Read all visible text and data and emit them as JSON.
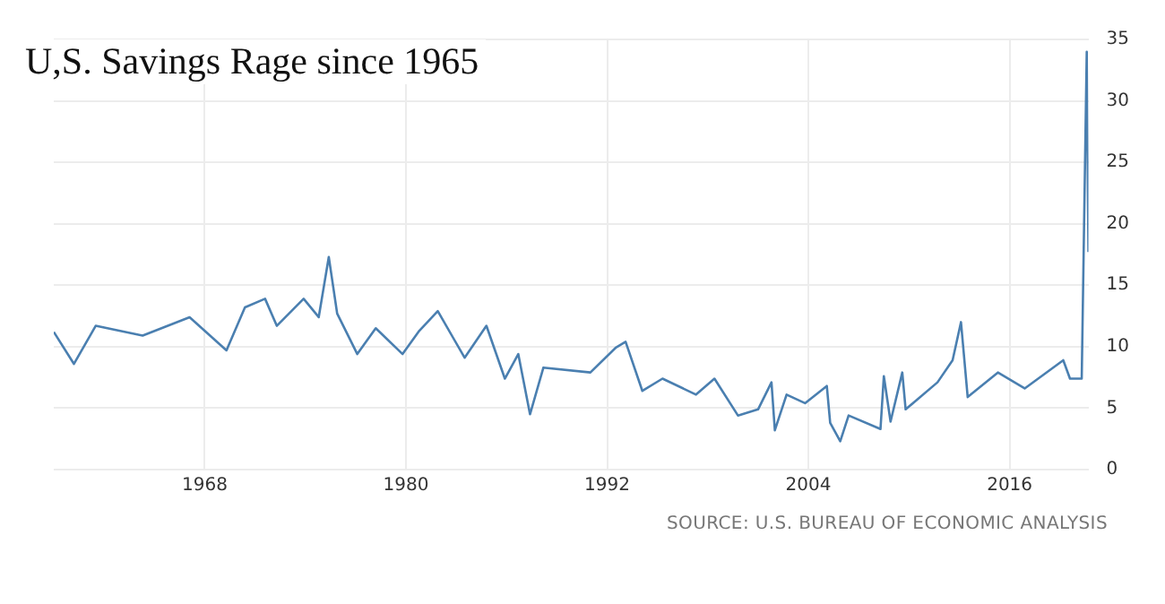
{
  "chart_data": {
    "type": "line",
    "title": "U,S. Savings Rage since 1965",
    "x": [
      1959.0,
      1960.2,
      1961.5,
      1964.3,
      1967.1,
      1969.3,
      1970.4,
      1971.6,
      1972.3,
      1973.9,
      1974.8,
      1975.4,
      1975.9,
      1977.1,
      1978.2,
      1979.8,
      1980.8,
      1981.9,
      1983.5,
      1984.8,
      1985.9,
      1986.7,
      1987.4,
      1988.2,
      1991.0,
      1992.5,
      1993.1,
      1994.1,
      1995.3,
      1997.3,
      1998.4,
      1999.8,
      2001.0,
      2001.8,
      2002.0,
      2002.7,
      2003.8,
      2005.1,
      2005.3,
      2005.9,
      2006.4,
      2008.3,
      2008.5,
      2008.9,
      2009.6,
      2009.8,
      2011.7,
      2012.6,
      2013.1,
      2013.5,
      2015.3,
      2016.9,
      2019.2,
      2019.6,
      2020.3,
      2020.6,
      2020.7
    ],
    "series": [
      {
        "color": "#4a7fb0",
        "values": [
          11.2,
          8.6,
          11.7,
          10.9,
          12.4,
          9.7,
          13.2,
          13.9,
          11.7,
          13.9,
          12.4,
          17.3,
          12.7,
          9.4,
          11.5,
          9.4,
          11.3,
          12.9,
          9.1,
          11.7,
          7.4,
          9.4,
          4.5,
          8.3,
          7.9,
          9.9,
          10.4,
          6.4,
          7.4,
          6.1,
          7.4,
          4.4,
          4.9,
          7.1,
          3.2,
          6.1,
          5.4,
          6.8,
          3.8,
          2.3,
          4.4,
          3.3,
          7.6,
          3.9,
          7.9,
          4.9,
          7.1,
          8.9,
          12.0,
          5.9,
          7.9,
          6.6,
          8.9,
          7.4,
          7.4,
          34.0,
          17.7
        ]
      }
    ],
    "xlim": [
      1959.0,
      2020.7
    ],
    "xticks": [
      1968,
      1980,
      1992,
      2004,
      2016
    ],
    "ylim": [
      0,
      35
    ],
    "yticks": [
      0,
      5,
      10,
      15,
      20,
      25,
      30,
      35
    ],
    "grid": true,
    "legend": false,
    "marker": "none",
    "line_style": "solid",
    "annotations": [
      "SOURCE: U.S. BUREAU OF ECONOMIC ANALYSIS"
    ]
  }
}
